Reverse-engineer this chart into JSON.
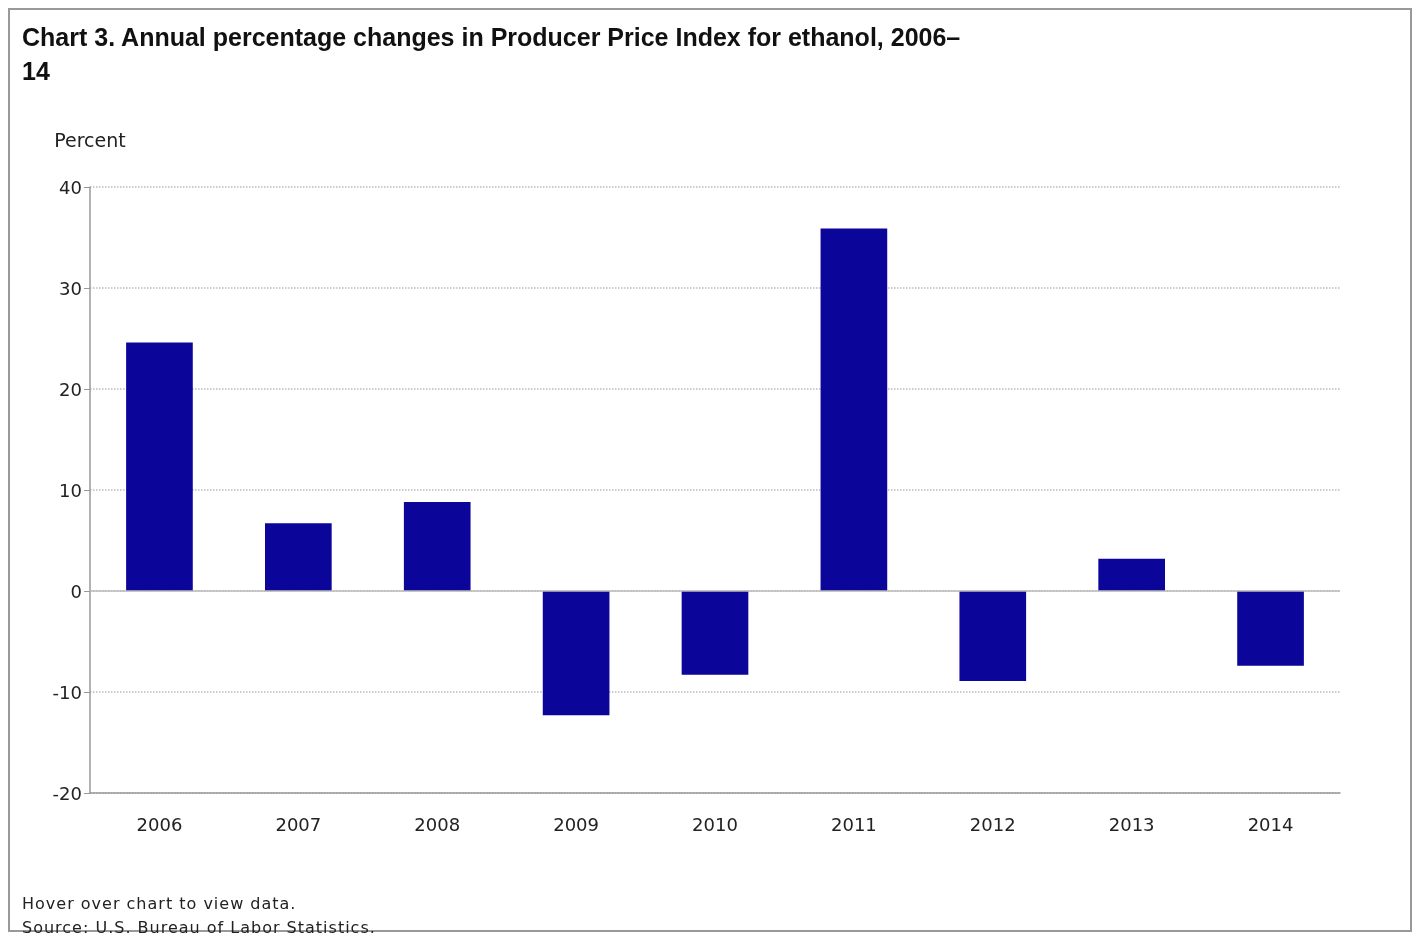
{
  "chart_data": {
    "type": "bar",
    "title": "Chart 3. Annual percentage changes in Producer Price Index for ethanol, 2006–14",
    "ylabel": "Percent",
    "categories": [
      "2006",
      "2007",
      "2008",
      "2009",
      "2010",
      "2011",
      "2012",
      "2013",
      "2014"
    ],
    "values": [
      24.6,
      6.7,
      8.8,
      -12.3,
      -8.3,
      35.9,
      -8.9,
      3.2,
      -7.4
    ],
    "color": "#0c0599",
    "ylim": [
      -20,
      40
    ],
    "yticks": [
      -20,
      -10,
      0,
      10,
      20,
      30,
      40
    ],
    "grid": "y",
    "ref_lines": [
      {
        "axis": "y",
        "value": 0,
        "color": "#bbbbbb",
        "line_style": "solid"
      }
    ],
    "annotations": [
      "Hover over chart to view data.",
      "Source: U.S. Bureau of Labor Statistics."
    ]
  }
}
